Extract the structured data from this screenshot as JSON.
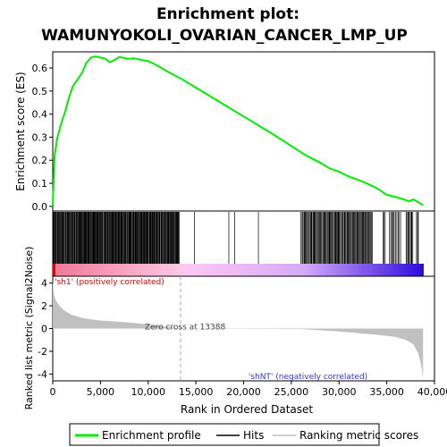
{
  "chart_data": {
    "type": "line",
    "title_line1": "Enrichment plot:",
    "title_line2": "WAMUNYOKOLI_OVARIAN_CANCER_LMP_UP",
    "xlabel": "Rank in Ordered Dataset",
    "ylabel_top": "Enrichment score (ES)",
    "ylabel_bottom": "Ranked list metric (Signal2Noise)",
    "xlim": [
      0,
      40000
    ],
    "es_ylim": [
      -0.02,
      0.67
    ],
    "metric_ylim": [
      -4.6,
      4.6
    ],
    "x_ticks": [
      0,
      5000,
      10000,
      15000,
      20000,
      25000,
      30000,
      35000,
      40000
    ],
    "x_tick_labels": [
      "0",
      "5,000",
      "10,000",
      "15,000",
      "20,000",
      "25,000",
      "30,000",
      "35,000",
      "40,000"
    ],
    "es_ticks": [
      0.0,
      0.1,
      0.2,
      0.3,
      0.4,
      0.5,
      0.6
    ],
    "es_tick_labels": [
      "0.0",
      "0.1",
      "0.2",
      "0.3",
      "0.4",
      "0.5",
      "0.6"
    ],
    "metric_ticks": [
      4,
      2,
      0,
      -2,
      -4
    ],
    "metric_tick_labels": [
      "4",
      "2",
      "0",
      "-2",
      "-4"
    ],
    "dataset_size": 38800,
    "zero_cross": 13388,
    "zero_cross_label": "Zero cross at 13388",
    "pos_label": "'sh1' (positively correlated)",
    "neg_label": "'shNT' (negatively correlated)",
    "series": [
      {
        "name": "Enrichment profile",
        "color": "#00ee00",
        "x": [
          0,
          200,
          500,
          900,
          1300,
          1700,
          2100,
          2600,
          3100,
          3500,
          4000,
          4500,
          5000,
          5500,
          6000,
          6500,
          7000,
          7500,
          8000,
          8500,
          9000,
          9500,
          10000,
          11000,
          12000,
          13400,
          15000,
          17000,
          19000,
          21000,
          23000,
          25000,
          26500,
          28000,
          29000,
          30000,
          31000,
          32000,
          33000,
          34000,
          35000,
          36000,
          36800,
          37300,
          37800,
          38300,
          38800
        ],
        "y": [
          0.0,
          0.22,
          0.3,
          0.36,
          0.41,
          0.47,
          0.52,
          0.55,
          0.58,
          0.62,
          0.645,
          0.65,
          0.645,
          0.64,
          0.625,
          0.635,
          0.648,
          0.643,
          0.64,
          0.642,
          0.638,
          0.633,
          0.63,
          0.61,
          0.585,
          0.555,
          0.515,
          0.465,
          0.415,
          0.365,
          0.315,
          0.262,
          0.222,
          0.19,
          0.165,
          0.15,
          0.13,
          0.115,
          0.098,
          0.078,
          0.05,
          0.04,
          0.03,
          0.022,
          0.03,
          0.018,
          0.005
        ]
      },
      {
        "name": "Hits",
        "color": "#000000"
      },
      {
        "name": "Ranking metric scores",
        "color": "#c0c0c0",
        "x": [
          0,
          100,
          300,
          700,
          1200,
          2000,
          3000,
          4000,
          5000,
          7000,
          9000,
          11000,
          13388,
          26000,
          30000,
          34000,
          36000,
          37000,
          37800,
          38300,
          38600,
          38800
        ],
        "y": [
          4.3,
          3.1,
          2.5,
          2.0,
          1.6,
          1.2,
          0.95,
          0.8,
          0.7,
          0.6,
          0.45,
          0.25,
          0.0,
          -0.05,
          -0.25,
          -0.55,
          -0.75,
          -1.0,
          -1.4,
          -2.2,
          -3.2,
          -4.4
        ]
      }
    ],
    "hit_clusters": [
      [
        50,
        13300,
        240
      ],
      [
        14800,
        14900,
        1
      ],
      [
        18400,
        18500,
        1
      ],
      [
        19000,
        19100,
        1
      ],
      [
        21500,
        21600,
        1
      ],
      [
        26000,
        33500,
        95
      ],
      [
        34500,
        35000,
        3
      ],
      [
        35200,
        36500,
        11
      ],
      [
        37000,
        37800,
        9
      ],
      [
        38100,
        38400,
        3
      ]
    ],
    "legend_position": "bottom"
  }
}
